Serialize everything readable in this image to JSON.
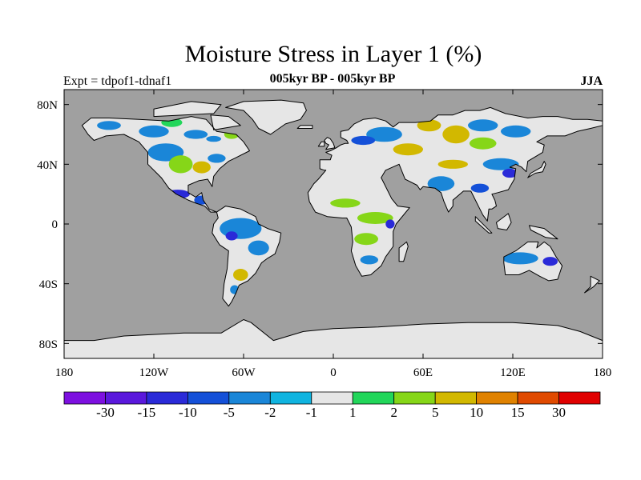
{
  "title": "Moisture Stress in Layer 1 (%)",
  "subtitle": "005kyr BP - 005kyr BP",
  "expt_label": "Expt = tdpof1-tdnaf1",
  "season": "JJA",
  "map": {
    "projection": "equirectangular",
    "lon_range": [
      -180,
      180
    ],
    "lat_range": [
      -90,
      90
    ],
    "ocean_color": "#a0a0a0",
    "land_base_color": "#e6e6e6",
    "coastline_color": "#000000",
    "y_ticks": [
      "80N",
      "40N",
      "0",
      "40S",
      "80S"
    ],
    "x_ticks": [
      "180",
      "120W",
      "60W",
      "0",
      "60E",
      "120E",
      "180"
    ]
  },
  "colorbar": {
    "colors": [
      "#7d10e0",
      "#5a18dc",
      "#2a2ad8",
      "#1450d8",
      "#1a86d8",
      "#10b4e0",
      "#e6e6e6",
      "#22d65a",
      "#86d618",
      "#d2b800",
      "#e08200",
      "#e04a00",
      "#e00000"
    ],
    "labels": [
      "-30",
      "-15",
      "-10",
      "-5",
      "-2",
      "-1",
      "1",
      "2",
      "5",
      "10",
      "15",
      "30"
    ]
  },
  "anomaly_patches": [
    {
      "lon": -150,
      "lat": 66,
      "rx": 8,
      "ry": 3,
      "level": "-2"
    },
    {
      "lon": -120,
      "lat": 62,
      "rx": 10,
      "ry": 4,
      "level": "-2"
    },
    {
      "lon": -108,
      "lat": 68,
      "rx": 7,
      "ry": 3,
      "level": "1"
    },
    {
      "lon": -92,
      "lat": 60,
      "rx": 8,
      "ry": 3,
      "level": "-2"
    },
    {
      "lon": -80,
      "lat": 57,
      "rx": 5,
      "ry": 2,
      "level": "-2"
    },
    {
      "lon": -68,
      "lat": 60,
      "rx": 5,
      "ry": 3,
      "level": "2"
    },
    {
      "lon": -112,
      "lat": 48,
      "rx": 12,
      "ry": 6,
      "level": "-2"
    },
    {
      "lon": -102,
      "lat": 40,
      "rx": 8,
      "ry": 6,
      "level": "2"
    },
    {
      "lon": -88,
      "lat": 38,
      "rx": 6,
      "ry": 4,
      "level": "5"
    },
    {
      "lon": -78,
      "lat": 44,
      "rx": 6,
      "ry": 3,
      "level": "-2"
    },
    {
      "lon": -104,
      "lat": 20,
      "rx": 8,
      "ry": 3,
      "level": "-10"
    },
    {
      "lon": -88,
      "lat": 16,
      "rx": 5,
      "ry": 3,
      "level": "-5"
    },
    {
      "lon": -62,
      "lat": -3,
      "rx": 14,
      "ry": 7,
      "level": "-2"
    },
    {
      "lon": -50,
      "lat": -16,
      "rx": 7,
      "ry": 5,
      "level": "-2"
    },
    {
      "lon": -68,
      "lat": -8,
      "rx": 4,
      "ry": 3,
      "level": "-10"
    },
    {
      "lon": -62,
      "lat": -34,
      "rx": 5,
      "ry": 4,
      "level": "5"
    },
    {
      "lon": -66,
      "lat": -44,
      "rx": 3,
      "ry": 3,
      "level": "-2"
    },
    {
      "lon": 34,
      "lat": 60,
      "rx": 12,
      "ry": 5,
      "level": "-2"
    },
    {
      "lon": 64,
      "lat": 66,
      "rx": 8,
      "ry": 4,
      "level": "5"
    },
    {
      "lon": 82,
      "lat": 60,
      "rx": 9,
      "ry": 6,
      "level": "5"
    },
    {
      "lon": 100,
      "lat": 66,
      "rx": 10,
      "ry": 4,
      "level": "-2"
    },
    {
      "lon": 122,
      "lat": 62,
      "rx": 10,
      "ry": 4,
      "level": "-2"
    },
    {
      "lon": 100,
      "lat": 54,
      "rx": 9,
      "ry": 4,
      "level": "2"
    },
    {
      "lon": 20,
      "lat": 56,
      "rx": 8,
      "ry": 3,
      "level": "-5"
    },
    {
      "lon": 50,
      "lat": 50,
      "rx": 10,
      "ry": 4,
      "level": "5"
    },
    {
      "lon": 80,
      "lat": 40,
      "rx": 10,
      "ry": 3,
      "level": "5"
    },
    {
      "lon": 112,
      "lat": 40,
      "rx": 12,
      "ry": 4,
      "level": "-2"
    },
    {
      "lon": 118,
      "lat": 34,
      "rx": 5,
      "ry": 3,
      "level": "-10"
    },
    {
      "lon": 72,
      "lat": 27,
      "rx": 9,
      "ry": 5,
      "level": "-2"
    },
    {
      "lon": 98,
      "lat": 24,
      "rx": 6,
      "ry": 3,
      "level": "-5"
    },
    {
      "lon": 28,
      "lat": 4,
      "rx": 12,
      "ry": 4,
      "level": "2"
    },
    {
      "lon": 22,
      "lat": -10,
      "rx": 8,
      "ry": 4,
      "level": "2"
    },
    {
      "lon": 38,
      "lat": 0,
      "rx": 3,
      "ry": 3,
      "level": "-10"
    },
    {
      "lon": 24,
      "lat": -24,
      "rx": 6,
      "ry": 3,
      "level": "-2"
    },
    {
      "lon": 8,
      "lat": 14,
      "rx": 10,
      "ry": 3,
      "level": "2"
    },
    {
      "lon": 125,
      "lat": -23,
      "rx": 12,
      "ry": 4,
      "level": "-2"
    },
    {
      "lon": 145,
      "lat": -25,
      "rx": 5,
      "ry": 3,
      "level": "-10"
    }
  ]
}
